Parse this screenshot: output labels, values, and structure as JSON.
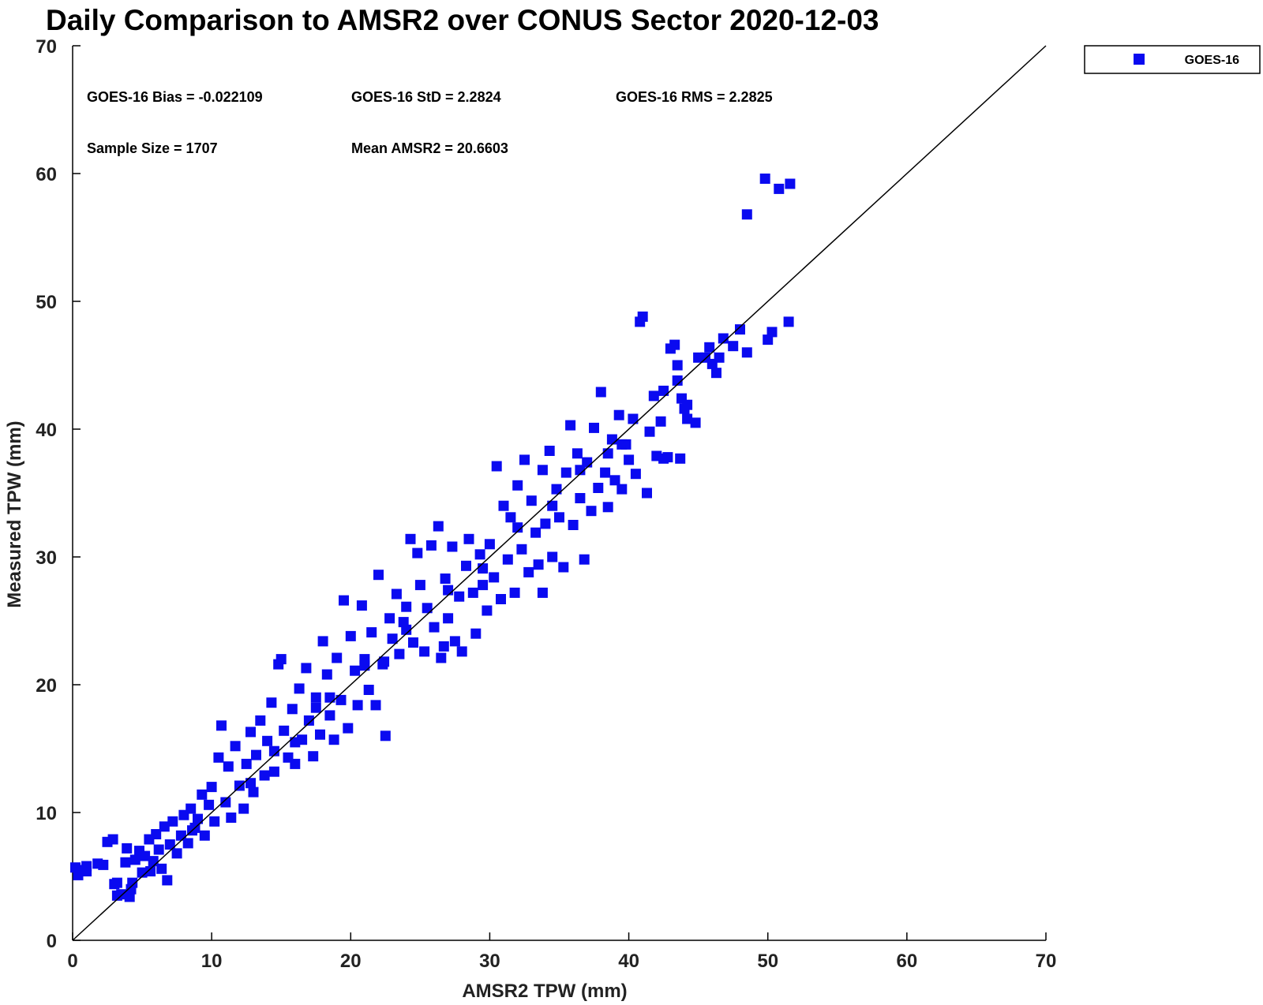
{
  "chart_data": {
    "type": "scatter",
    "title": "Daily Comparison to AMSR2 over CONUS Sector 2020-12-03",
    "xlabel": "AMSR2 TPW (mm)",
    "ylabel": "Measured TPW (mm)",
    "xlim": [
      0,
      70
    ],
    "ylim": [
      0,
      70
    ],
    "xticks": [
      "0",
      "10",
      "20",
      "30",
      "40",
      "50",
      "60",
      "70"
    ],
    "yticks": [
      "0",
      "10",
      "20",
      "30",
      "40",
      "50",
      "60",
      "70"
    ],
    "grid": false,
    "reference_line": "1:1",
    "legend": {
      "position": "outside-top-right",
      "entries": [
        "GOES-16"
      ]
    },
    "stats": {
      "bias": "GOES-16 Bias = -0.022109",
      "std": "GOES-16 StD = 2.2824",
      "rms": "GOES-16 RMS = 2.2825",
      "sample_size": "Sample Size = 1707",
      "mean": "Mean AMSR2 = 20.6603"
    },
    "series": [
      {
        "name": "GOES-16",
        "color": "#0a0af0",
        "marker": "square",
        "points": [
          [
            0.2,
            5.7
          ],
          [
            0.4,
            5.1
          ],
          [
            0.7,
            5.5
          ],
          [
            1.0,
            5.8
          ],
          [
            1.8,
            6.0
          ],
          [
            2.2,
            5.9
          ],
          [
            2.5,
            7.7
          ],
          [
            2.9,
            7.9
          ],
          [
            3.0,
            4.4
          ],
          [
            3.2,
            4.5
          ],
          [
            3.5,
            3.6
          ],
          [
            3.8,
            6.1
          ],
          [
            3.9,
            7.2
          ],
          [
            4.1,
            3.4
          ],
          [
            4.3,
            4.5
          ],
          [
            4.5,
            6.3
          ],
          [
            4.8,
            7.0
          ],
          [
            5.0,
            5.3
          ],
          [
            5.2,
            6.6
          ],
          [
            5.5,
            7.9
          ],
          [
            5.8,
            6.2
          ],
          [
            6.0,
            8.3
          ],
          [
            6.2,
            7.1
          ],
          [
            6.4,
            5.6
          ],
          [
            6.6,
            8.9
          ],
          [
            6.8,
            4.7
          ],
          [
            7.0,
            7.5
          ],
          [
            7.2,
            9.3
          ],
          [
            7.5,
            6.8
          ],
          [
            7.8,
            8.2
          ],
          [
            8.0,
            9.8
          ],
          [
            8.3,
            7.6
          ],
          [
            8.5,
            10.3
          ],
          [
            8.8,
            8.8
          ],
          [
            9.0,
            9.5
          ],
          [
            9.3,
            11.4
          ],
          [
            9.5,
            8.2
          ],
          [
            9.8,
            10.6
          ],
          [
            10.0,
            12.0
          ],
          [
            10.2,
            9.3
          ],
          [
            10.5,
            14.3
          ],
          [
            10.7,
            16.8
          ],
          [
            11.0,
            10.8
          ],
          [
            11.2,
            13.6
          ],
          [
            11.4,
            9.6
          ],
          [
            11.7,
            15.2
          ],
          [
            12.0,
            12.1
          ],
          [
            12.3,
            10.3
          ],
          [
            12.5,
            13.8
          ],
          [
            12.8,
            16.3
          ],
          [
            13.0,
            11.6
          ],
          [
            13.2,
            14.5
          ],
          [
            13.5,
            17.2
          ],
          [
            13.8,
            12.9
          ],
          [
            14.0,
            15.6
          ],
          [
            14.3,
            18.6
          ],
          [
            14.5,
            13.2
          ],
          [
            14.8,
            21.6
          ],
          [
            15.0,
            22.0
          ],
          [
            15.2,
            16.4
          ],
          [
            15.5,
            14.3
          ],
          [
            15.8,
            18.1
          ],
          [
            16.0,
            13.8
          ],
          [
            16.3,
            19.7
          ],
          [
            16.5,
            15.7
          ],
          [
            16.8,
            21.3
          ],
          [
            17.0,
            17.2
          ],
          [
            17.3,
            14.4
          ],
          [
            17.5,
            19.0
          ],
          [
            17.8,
            16.1
          ],
          [
            18.0,
            23.4
          ],
          [
            18.3,
            20.8
          ],
          [
            18.5,
            17.6
          ],
          [
            18.8,
            15.7
          ],
          [
            19.0,
            22.1
          ],
          [
            19.3,
            18.8
          ],
          [
            19.5,
            26.6
          ],
          [
            19.8,
            16.6
          ],
          [
            20.0,
            23.8
          ],
          [
            20.3,
            21.1
          ],
          [
            20.5,
            18.4
          ],
          [
            20.8,
            26.2
          ],
          [
            21.0,
            22.0
          ],
          [
            21.3,
            19.6
          ],
          [
            21.5,
            24.1
          ],
          [
            21.8,
            18.4
          ],
          [
            22.0,
            28.6
          ],
          [
            22.3,
            21.6
          ],
          [
            22.5,
            16.0
          ],
          [
            22.8,
            25.2
          ],
          [
            23.0,
            23.6
          ],
          [
            23.3,
            27.1
          ],
          [
            23.5,
            22.4
          ],
          [
            23.8,
            24.9
          ],
          [
            24.0,
            26.1
          ],
          [
            24.3,
            31.4
          ],
          [
            24.5,
            23.3
          ],
          [
            24.8,
            30.3
          ],
          [
            25.0,
            27.8
          ],
          [
            25.3,
            22.6
          ],
          [
            25.5,
            26.0
          ],
          [
            25.8,
            30.9
          ],
          [
            26.0,
            24.5
          ],
          [
            26.3,
            32.4
          ],
          [
            26.5,
            22.1
          ],
          [
            26.8,
            28.3
          ],
          [
            27.0,
            25.2
          ],
          [
            27.3,
            30.8
          ],
          [
            27.5,
            23.4
          ],
          [
            27.8,
            26.9
          ],
          [
            28.0,
            22.6
          ],
          [
            28.3,
            29.3
          ],
          [
            28.5,
            31.4
          ],
          [
            28.8,
            27.2
          ],
          [
            29.0,
            24.0
          ],
          [
            29.3,
            30.2
          ],
          [
            29.5,
            27.8
          ],
          [
            29.8,
            25.8
          ],
          [
            30.0,
            31.0
          ],
          [
            30.3,
            28.4
          ],
          [
            30.5,
            37.1
          ],
          [
            30.8,
            26.7
          ],
          [
            31.0,
            34.0
          ],
          [
            31.3,
            29.8
          ],
          [
            31.5,
            33.1
          ],
          [
            31.8,
            27.2
          ],
          [
            32.0,
            35.6
          ],
          [
            32.3,
            30.6
          ],
          [
            32.5,
            37.6
          ],
          [
            32.8,
            28.8
          ],
          [
            33.0,
            34.4
          ],
          [
            33.3,
            31.9
          ],
          [
            33.5,
            29.4
          ],
          [
            33.8,
            36.8
          ],
          [
            34.0,
            32.6
          ],
          [
            34.3,
            38.3
          ],
          [
            34.5,
            30.0
          ],
          [
            34.8,
            35.3
          ],
          [
            35.0,
            33.1
          ],
          [
            35.3,
            29.2
          ],
          [
            35.5,
            36.6
          ],
          [
            35.8,
            40.3
          ],
          [
            36.0,
            32.5
          ],
          [
            36.3,
            38.1
          ],
          [
            36.5,
            34.6
          ],
          [
            36.8,
            29.8
          ],
          [
            37.0,
            37.4
          ],
          [
            37.3,
            33.6
          ],
          [
            37.5,
            40.1
          ],
          [
            37.8,
            35.4
          ],
          [
            38.0,
            42.9
          ],
          [
            38.3,
            36.6
          ],
          [
            38.5,
            33.9
          ],
          [
            38.8,
            39.2
          ],
          [
            39.0,
            36.0
          ],
          [
            39.3,
            41.1
          ],
          [
            39.5,
            35.3
          ],
          [
            39.8,
            38.8
          ],
          [
            40.0,
            37.6
          ],
          [
            40.3,
            40.8
          ],
          [
            40.5,
            36.5
          ],
          [
            40.8,
            48.4
          ],
          [
            41.0,
            48.8
          ],
          [
            41.3,
            35.0
          ],
          [
            41.5,
            39.8
          ],
          [
            41.8,
            42.6
          ],
          [
            42.0,
            37.9
          ],
          [
            42.3,
            40.6
          ],
          [
            42.5,
            43.0
          ],
          [
            42.8,
            37.8
          ],
          [
            43.0,
            46.3
          ],
          [
            43.3,
            46.6
          ],
          [
            43.5,
            45.0
          ],
          [
            43.5,
            43.8
          ],
          [
            43.8,
            42.4
          ],
          [
            44.0,
            41.6
          ],
          [
            44.2,
            40.8
          ],
          [
            44.8,
            40.5
          ],
          [
            45.5,
            45.6
          ],
          [
            45.8,
            46.4
          ],
          [
            46.0,
            45.1
          ],
          [
            46.3,
            44.4
          ],
          [
            46.5,
            45.6
          ],
          [
            46.8,
            47.1
          ],
          [
            47.5,
            46.5
          ],
          [
            48.0,
            47.8
          ],
          [
            48.5,
            46.0
          ],
          [
            48.5,
            56.8
          ],
          [
            49.8,
            59.6
          ],
          [
            50.0,
            47.0
          ],
          [
            50.3,
            47.6
          ],
          [
            50.8,
            58.8
          ],
          [
            51.5,
            48.4
          ],
          [
            51.6,
            59.2
          ],
          [
            45.0,
            45.6
          ],
          [
            44.2,
            41.9
          ],
          [
            43.7,
            37.7
          ],
          [
            42.5,
            37.7
          ],
          [
            39.5,
            38.8
          ],
          [
            33.8,
            27.2
          ],
          [
            26.7,
            23.0
          ],
          [
            22.4,
            21.8
          ],
          [
            17.5,
            18.2
          ],
          [
            12.8,
            12.3
          ],
          [
            8.6,
            8.6
          ],
          [
            5.6,
            5.4
          ],
          [
            4.2,
            4.0
          ],
          [
            3.2,
            3.5
          ],
          [
            1.0,
            5.4
          ],
          [
            14.5,
            14.8
          ],
          [
            16.0,
            15.5
          ],
          [
            18.5,
            19.0
          ],
          [
            21.0,
            21.5
          ],
          [
            24.0,
            24.3
          ],
          [
            27.0,
            27.4
          ],
          [
            29.5,
            29.1
          ],
          [
            32.0,
            32.3
          ],
          [
            34.5,
            34.0
          ],
          [
            36.5,
            36.8
          ],
          [
            38.5,
            38.1
          ]
        ]
      }
    ]
  }
}
